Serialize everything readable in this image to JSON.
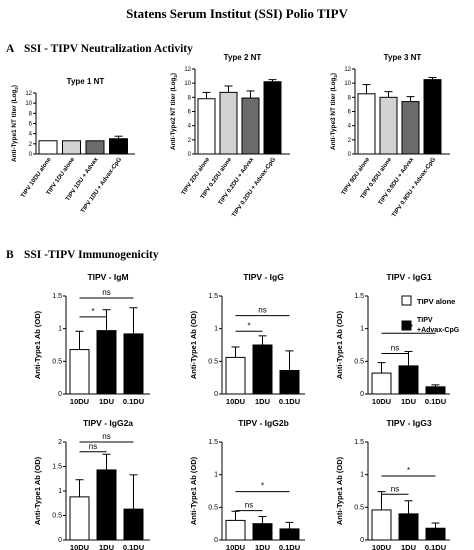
{
  "figure": {
    "title": "Statens Serum Institut (SSI) Polio TIPV",
    "section_a": {
      "letter": "A",
      "title": "SSI - TIPV Neutralization Activity"
    },
    "section_b": {
      "letter": "B",
      "title": "SSI -TIPV Immunogenicity"
    },
    "legend": [
      {
        "label": "TIPV alone",
        "color": "#ffffff"
      },
      {
        "label": "TIPV +Advax-CpG",
        "color": "#000000"
      }
    ]
  },
  "chart_data": [
    {
      "type": "bar",
      "panel": "A",
      "title": "Type 1 NT",
      "ylabel": "Anti-Type1 NT titer (Log2)",
      "ylim": [
        0,
        12
      ],
      "yticks": [
        0,
        2,
        4,
        6,
        8,
        10,
        12
      ],
      "categories": [
        "TIPV 10DU alone",
        "TIPV 1DU alone",
        "TIPV 1DU + Advax",
        "TIPV 1DU + Advax-CpG"
      ],
      "values": [
        2.6,
        2.6,
        2.6,
        3.0
      ],
      "errors": [
        0,
        0,
        0,
        0.5
      ],
      "colors": [
        "#ffffff",
        "#d3d3d3",
        "#6b6b6b",
        "#000000"
      ],
      "significance": []
    },
    {
      "type": "bar",
      "panel": "A",
      "title": "Type 2 NT",
      "ylabel": "Anti-Type2 NT titer (Log2)",
      "ylim": [
        0,
        12
      ],
      "yticks": [
        0,
        2,
        4,
        6,
        8,
        10,
        12
      ],
      "categories": [
        "TIPV 2DU alone",
        "TIPV 0.2DU alone",
        "TIPV 0.2DU + Advax",
        "TIPV 0.2DU + Advax-CpG"
      ],
      "values": [
        7.8,
        8.7,
        7.9,
        10.2
      ],
      "errors": [
        0.9,
        0.9,
        1.0,
        0.3
      ],
      "colors": [
        "#ffffff",
        "#d3d3d3",
        "#6b6b6b",
        "#000000"
      ],
      "significance": []
    },
    {
      "type": "bar",
      "panel": "A",
      "title": "Type 3 NT",
      "ylabel": "Anti-Type3 NT titer (Log2)",
      "ylim": [
        0,
        12
      ],
      "yticks": [
        0,
        2,
        4,
        6,
        8,
        10,
        12
      ],
      "categories": [
        "TIPV 9DU alone",
        "TIPV 0.9DU alone",
        "TIPV 0.9DU + Advax",
        "TIPV 0.9DU + Advax-CpG"
      ],
      "values": [
        8.5,
        8.0,
        7.4,
        10.5
      ],
      "errors": [
        1.3,
        0.8,
        0.7,
        0.3
      ],
      "colors": [
        "#ffffff",
        "#d3d3d3",
        "#6b6b6b",
        "#000000"
      ],
      "significance": []
    },
    {
      "type": "bar",
      "panel": "B",
      "title": "TIPV - IgM",
      "ylabel": "Anti-Type1 Ab (OD)",
      "ylim": [
        0,
        1.5
      ],
      "yticks": [
        0.0,
        0.5,
        1.0,
        1.5
      ],
      "categories": [
        "10DU",
        "1DU",
        "0.1DU"
      ],
      "values": [
        0.68,
        0.97,
        0.92
      ],
      "errors": [
        0.28,
        0.32,
        0.4
      ],
      "colors": [
        "#ffffff",
        "#000000",
        "#000000"
      ],
      "significance": [
        {
          "from": 0,
          "to": 1,
          "label": "*",
          "y": 1.18
        },
        {
          "from": 0,
          "to": 2,
          "label": "ns",
          "y": 1.47
        }
      ]
    },
    {
      "type": "bar",
      "panel": "B",
      "title": "TIPV - IgG",
      "ylabel": "Anti-Type1 Ab (OD)",
      "ylim": [
        0,
        1.5
      ],
      "yticks": [
        0.0,
        0.5,
        1.0,
        1.5
      ],
      "categories": [
        "10DU",
        "1DU",
        "0.1DU"
      ],
      "values": [
        0.56,
        0.75,
        0.36
      ],
      "errors": [
        0.16,
        0.14,
        0.3
      ],
      "colors": [
        "#ffffff",
        "#000000",
        "#000000"
      ],
      "significance": [
        {
          "from": 0,
          "to": 1,
          "label": "*",
          "y": 0.96
        },
        {
          "from": 0,
          "to": 2,
          "label": "ns",
          "y": 1.2
        }
      ]
    },
    {
      "type": "bar",
      "panel": "B",
      "title": "TIPV - IgG1",
      "ylabel": "Anti-Type1 Ab (OD)",
      "ylim": [
        0,
        1.5
      ],
      "yticks": [
        0.0,
        0.5,
        1.0,
        1.5
      ],
      "categories": [
        "10DU",
        "1DU",
        "0.1DU"
      ],
      "values": [
        0.32,
        0.43,
        0.11
      ],
      "errors": [
        0.16,
        0.22,
        0.03
      ],
      "colors": [
        "#ffffff",
        "#000000",
        "#000000"
      ],
      "significance": [
        {
          "from": 0,
          "to": 1,
          "label": "ns",
          "y": 0.62
        },
        {
          "from": 0,
          "to": 2,
          "label": "***",
          "y": 0.93
        }
      ]
    },
    {
      "type": "bar",
      "panel": "B",
      "title": "TIPV - IgG2a",
      "ylabel": "Anti-Type1 Ab (OD)",
      "ylim": [
        0,
        2.0
      ],
      "yticks": [
        0.0,
        0.5,
        1.0,
        1.5,
        2.0
      ],
      "categories": [
        "10DU",
        "1DU",
        "0.1DU"
      ],
      "values": [
        0.88,
        1.43,
        0.63
      ],
      "errors": [
        0.35,
        0.32,
        0.7
      ],
      "colors": [
        "#ffffff",
        "#000000",
        "#000000"
      ],
      "significance": [
        {
          "from": 0,
          "to": 1,
          "label": "ns",
          "y": 1.8
        },
        {
          "from": 0,
          "to": 2,
          "label": "ns",
          "y": 2.0
        }
      ]
    },
    {
      "type": "bar",
      "panel": "B",
      "title": "TIPV - IgG2b",
      "ylabel": "Anti-Type1 Ab (OD)",
      "ylim": [
        0,
        1.5
      ],
      "yticks": [
        0.0,
        0.5,
        1.0,
        1.5
      ],
      "categories": [
        "10DU",
        "1DU",
        "0.1DU"
      ],
      "values": [
        0.3,
        0.25,
        0.17
      ],
      "errors": [
        0.14,
        0.11,
        0.1
      ],
      "colors": [
        "#ffffff",
        "#000000",
        "#000000"
      ],
      "significance": [
        {
          "from": 0,
          "to": 1,
          "label": "ns",
          "y": 0.45
        },
        {
          "from": 0,
          "to": 2,
          "label": "*",
          "y": 0.74
        }
      ]
    },
    {
      "type": "bar",
      "panel": "B",
      "title": "TIPV - IgG3",
      "ylabel": "Anti-Type1 Ab (OD)",
      "ylim": [
        0,
        1.5
      ],
      "yticks": [
        0.0,
        0.5,
        1.0,
        1.5
      ],
      "categories": [
        "10DU",
        "1DU",
        "0.1DU"
      ],
      "values": [
        0.46,
        0.4,
        0.18
      ],
      "errors": [
        0.28,
        0.2,
        0.08
      ],
      "colors": [
        "#ffffff",
        "#000000",
        "#000000"
      ],
      "significance": [
        {
          "from": 0,
          "to": 1,
          "label": "ns",
          "y": 0.7
        },
        {
          "from": 0,
          "to": 2,
          "label": "*",
          "y": 0.98
        }
      ]
    }
  ]
}
